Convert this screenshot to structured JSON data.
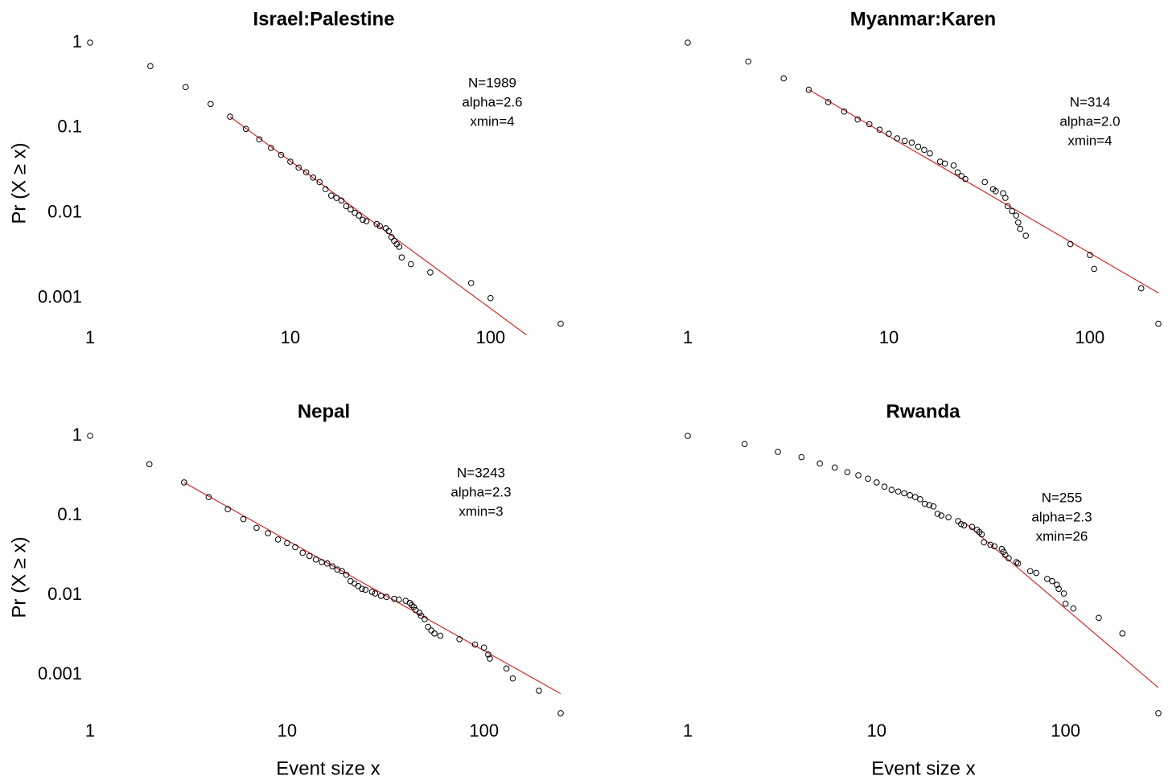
{
  "chart_data": [
    {
      "type": "scatter",
      "title": "Israel:Palestine",
      "y_label": "Pr (X ≥ x)",
      "log_scale": true,
      "color": "#000000",
      "fit_color": "#d42a2a",
      "xlim": [
        1,
        224
      ],
      "ylim": [
        0.0003,
        1
      ],
      "xticks": [
        1,
        10,
        100
      ],
      "yticks": [
        1,
        0.1,
        0.01,
        0.001
      ],
      "annotations": [
        "N=1989",
        "alpha=2.6",
        "xmin=4"
      ],
      "x": [
        1,
        2,
        3,
        4,
        5,
        6,
        7,
        8,
        9,
        10,
        11,
        12,
        13,
        14,
        15,
        16,
        17,
        18,
        19,
        20,
        21,
        22,
        23,
        24,
        27,
        28,
        30,
        31,
        32,
        33,
        34,
        35,
        36,
        40,
        50,
        80,
        100,
        224
      ],
      "values": [
        1,
        0.53,
        0.3,
        0.19,
        0.135,
        0.097,
        0.073,
        0.058,
        0.048,
        0.04,
        0.034,
        0.03,
        0.026,
        0.023,
        0.019,
        0.016,
        0.015,
        0.014,
        0.012,
        0.011,
        0.01,
        0.0093,
        0.0083,
        0.008,
        0.0074,
        0.007,
        0.0066,
        0.0061,
        0.0052,
        0.0047,
        0.0043,
        0.004,
        0.003,
        0.0025,
        0.002,
        0.0015,
        0.001,
        0.0005
      ],
      "fit_x": [
        5,
        151
      ],
      "fit_values": [
        0.135,
        0.00037
      ]
    },
    {
      "type": "scatter",
      "title": "Myanmar:Karen",
      "log_scale": true,
      "color": "#000000",
      "fit_color": "#d42a2a",
      "xlim": [
        1,
        219
      ],
      "ylim": [
        0.0003,
        1
      ],
      "xticks": [
        1,
        10,
        100
      ],
      "annotations": [
        "N=314",
        "alpha=2.0",
        "xmin=4"
      ],
      "x": [
        1,
        2,
        3,
        4,
        5,
        6,
        7,
        8,
        9,
        10,
        11,
        12,
        13,
        14,
        15,
        16,
        18,
        19,
        21,
        22,
        23,
        24,
        30,
        33,
        34,
        37,
        38,
        39,
        41,
        43,
        44,
        45,
        48,
        80,
        100,
        105,
        180,
        219
      ],
      "values": [
        1,
        0.6,
        0.38,
        0.28,
        0.2,
        0.155,
        0.125,
        0.11,
        0.095,
        0.085,
        0.075,
        0.07,
        0.067,
        0.06,
        0.055,
        0.05,
        0.04,
        0.038,
        0.036,
        0.03,
        0.027,
        0.025,
        0.023,
        0.019,
        0.018,
        0.017,
        0.015,
        0.012,
        0.0105,
        0.0093,
        0.0077,
        0.0065,
        0.0054,
        0.0043,
        0.0032,
        0.0022,
        0.0013,
        0.0005
      ],
      "fit_x": [
        4,
        219
      ],
      "fit_values": [
        0.28,
        0.00115
      ]
    },
    {
      "type": "scatter",
      "title": "Nepal",
      "x_label": "Event size x",
      "y_label": "Pr (X ≥ x)",
      "log_scale": true,
      "color": "#000000",
      "fit_color": "#d42a2a",
      "xlim": [
        1,
        245
      ],
      "ylim": [
        0.0003,
        1
      ],
      "xticks": [
        1,
        10,
        100
      ],
      "yticks": [
        1,
        0.1,
        0.01,
        0.001
      ],
      "annotations": [
        "N=3243",
        "alpha=2.3",
        "xmin=3"
      ],
      "x": [
        1,
        2,
        3,
        4,
        5,
        6,
        7,
        8,
        9,
        10,
        11,
        12,
        13,
        14,
        15,
        16,
        17,
        18,
        19,
        20,
        21,
        22,
        23,
        24,
        25,
        27,
        28,
        30,
        32,
        35,
        37,
        40,
        42,
        43,
        44,
        45,
        47,
        48,
        50,
        52,
        54,
        56,
        60,
        75,
        90,
        100,
        105,
        107,
        130,
        140,
        190,
        245
      ],
      "values": [
        1,
        0.44,
        0.26,
        0.17,
        0.12,
        0.09,
        0.07,
        0.06,
        0.05,
        0.045,
        0.04,
        0.034,
        0.031,
        0.028,
        0.026,
        0.025,
        0.023,
        0.021,
        0.02,
        0.018,
        0.015,
        0.014,
        0.013,
        0.012,
        0.0117,
        0.011,
        0.0105,
        0.0098,
        0.0095,
        0.009,
        0.0088,
        0.0085,
        0.008,
        0.0075,
        0.0071,
        0.0065,
        0.006,
        0.0055,
        0.005,
        0.004,
        0.0036,
        0.0033,
        0.0031,
        0.0028,
        0.0024,
        0.0022,
        0.0018,
        0.0016,
        0.0012,
        0.0009,
        0.00063,
        0.00033
      ],
      "fit_x": [
        3,
        245
      ],
      "fit_values": [
        0.26,
        0.00058
      ]
    },
    {
      "type": "scatter",
      "title": "Rwanda",
      "x_label": "Event size x",
      "log_scale": true,
      "color": "#000000",
      "fit_color": "#d42a2a",
      "xlim": [
        1,
        310
      ],
      "ylim": [
        0.0003,
        1
      ],
      "xticks": [
        1,
        10,
        100
      ],
      "annotations": [
        "N=255",
        "alpha=2.3",
        "xmin=26"
      ],
      "x": [
        1,
        2,
        3,
        4,
        5,
        6,
        7,
        8,
        9,
        10,
        11,
        12,
        13,
        14,
        15,
        16,
        17,
        18,
        19,
        20,
        21,
        22,
        24,
        27,
        28,
        29,
        32,
        34,
        35,
        36,
        37,
        40,
        42,
        46,
        47,
        48,
        50,
        55,
        56,
        65,
        70,
        80,
        85,
        90,
        92,
        98,
        100,
        110,
        150,
        200,
        310
      ],
      "values": [
        1,
        0.79,
        0.63,
        0.54,
        0.45,
        0.4,
        0.35,
        0.32,
        0.29,
        0.26,
        0.23,
        0.21,
        0.2,
        0.19,
        0.18,
        0.17,
        0.16,
        0.14,
        0.135,
        0.13,
        0.105,
        0.1,
        0.095,
        0.085,
        0.078,
        0.075,
        0.072,
        0.066,
        0.062,
        0.058,
        0.046,
        0.043,
        0.041,
        0.038,
        0.035,
        0.032,
        0.029,
        0.026,
        0.025,
        0.02,
        0.019,
        0.016,
        0.015,
        0.0135,
        0.012,
        0.0105,
        0.0078,
        0.0068,
        0.0052,
        0.0033,
        0.00033
      ],
      "fit_x": [
        29,
        310
      ],
      "fit_values": [
        0.083,
        0.00069
      ]
    }
  ]
}
